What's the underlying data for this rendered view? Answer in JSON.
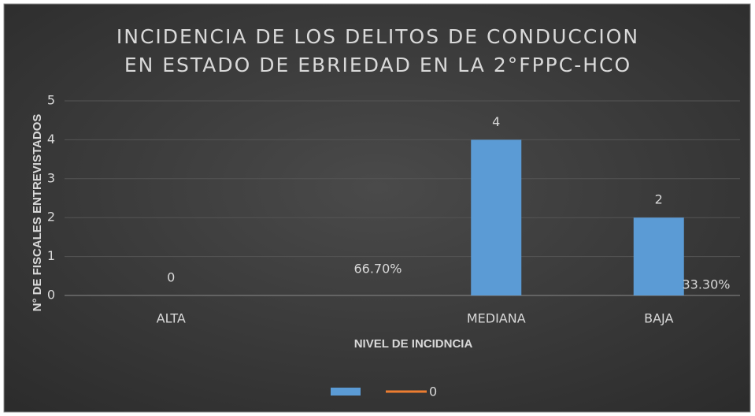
{
  "chart_data": {
    "type": "bar",
    "title": [
      "INCIDENCIA DE LOS DELITOS DE CONDUCCION",
      "EN ESTADO DE EBRIEDAD EN LA 2°FPPC-HCO"
    ],
    "x_label": "NIVEL DE INCIDNCIA",
    "y_label": "N° DE FISCALES ENTREVISTADOS",
    "categories": [
      "ALTA",
      null,
      "MEDIANA",
      "BAJA"
    ],
    "series": [
      {
        "color": "#5b9bd5",
        "values": [
          0,
          null,
          4,
          2
        ]
      },
      {
        "name": "0",
        "color": "#ed7d31"
      }
    ],
    "annotations": [
      "66.70%",
      "33.30%"
    ],
    "ylim": [
      0,
      5
    ],
    "yticks": [
      0,
      1,
      2,
      3,
      4,
      5
    ],
    "grid": true,
    "legend": "bottom"
  }
}
